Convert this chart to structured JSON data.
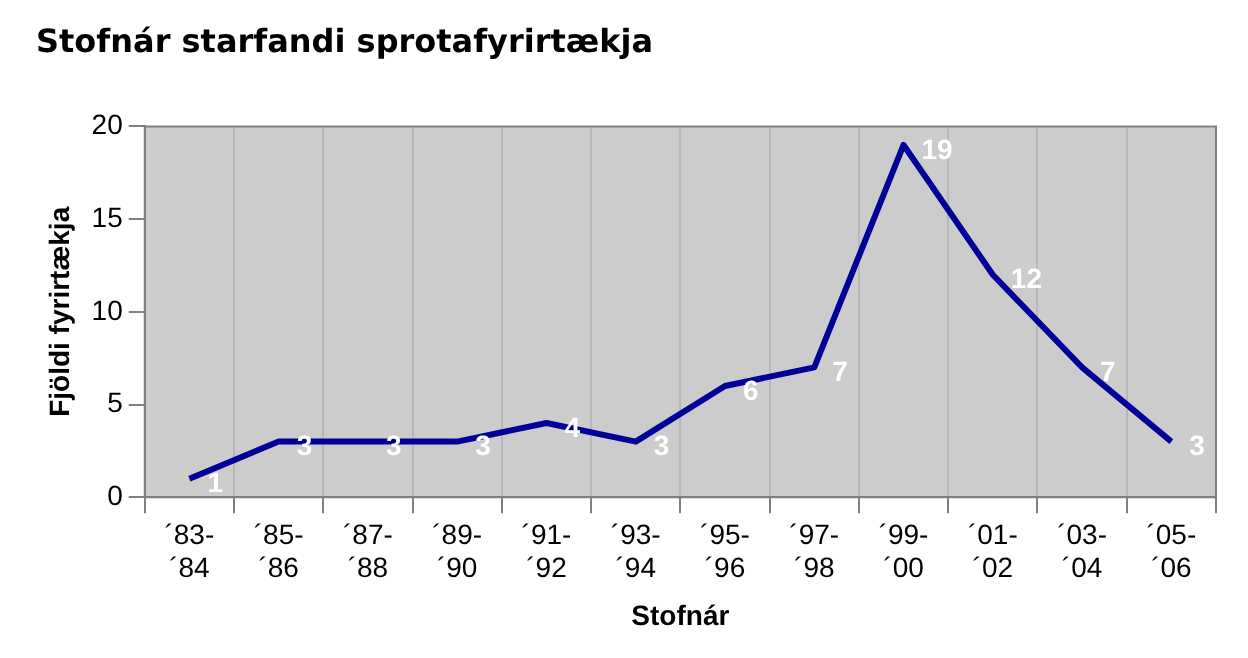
{
  "chart_data": {
    "type": "line",
    "title": "Stofnár starfandi sprotafyrirtækja",
    "xlabel": "Stofnár",
    "ylabel": "Fjöldi fyrirtækja",
    "categories": [
      "´83-´84",
      "´85-´86",
      "´87-´88",
      "´89-´90",
      "´91-´92",
      "´93-´94",
      "´95-´96",
      "´97-´98",
      "´99-´00",
      "´01-´02",
      "´03-´04",
      "´05-´06"
    ],
    "series": [
      {
        "color": "#000099",
        "values": [
          1,
          3,
          3,
          3,
          4,
          3,
          6,
          7,
          19,
          12,
          7,
          3
        ]
      }
    ],
    "ylim": [
      0,
      20
    ],
    "yticks": [
      0,
      5,
      10,
      15,
      20
    ],
    "grid": "x",
    "legend": false,
    "marker": "none",
    "line_style": "solid",
    "data_labels": true
  }
}
